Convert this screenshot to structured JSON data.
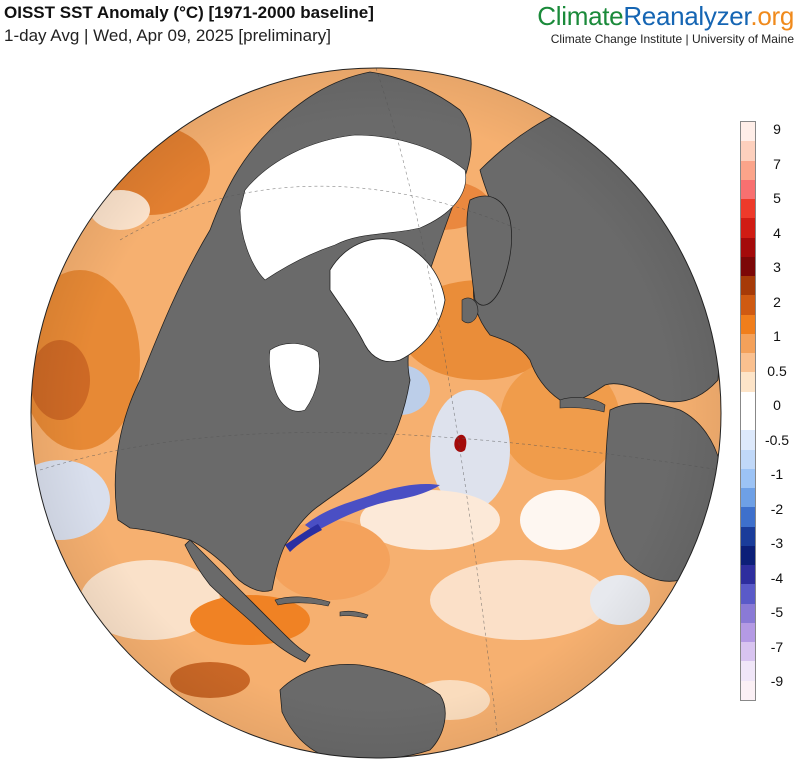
{
  "header": {
    "title": "OISST SST Anomaly (°C) [1971-2000 baseline]",
    "subtitle": "1-day Avg | Wed, Apr 09, 2025 [preliminary]"
  },
  "brand": {
    "logo_part1": "Climate",
    "logo_part2": "Reanalyzer",
    "logo_part3": ".org",
    "affiliation": "Climate Change Institute | University of Maine"
  },
  "colors": {
    "land": "#6a6a6a",
    "ice": "#ffffff",
    "ocean_warm": "#f4a155",
    "ocean_warmer": "#e07a2a",
    "ocean_neutral": "#fdf6ef",
    "ocean_cool": "#c9defa",
    "ocean_cold": "#5a62d6",
    "brand_green": "#1a8a3a",
    "brand_blue": "#1565b3",
    "brand_orange": "#f08a1c"
  },
  "legend": {
    "labels": [
      "9",
      "7",
      "5",
      "4",
      "3",
      "2",
      "1",
      "0.5",
      "0",
      "-0.5",
      "-1",
      "-2",
      "-3",
      "-4",
      "-5",
      "-7",
      "-9"
    ],
    "colors": [
      "#ffeee8",
      "#fdd0bd",
      "#fba48a",
      "#f87070",
      "#ee3a2a",
      "#d01c13",
      "#a40a0a",
      "#7c0707",
      "#a63a08",
      "#cf5a12",
      "#f07e1c",
      "#f4a15a",
      "#fac08f",
      "#fde4c8",
      "#ffffff",
      "#ffffff",
      "#dde9fb",
      "#c0d8f8",
      "#9cc3f5",
      "#6ea0e6",
      "#3e70cc",
      "#1a3c9a",
      "#0c1f78",
      "#2e2e9e",
      "#5a5ac8",
      "#8a7ad6",
      "#b49ae4",
      "#d8c4f0",
      "#f0e6f8",
      "#fbf0f5"
    ]
  }
}
